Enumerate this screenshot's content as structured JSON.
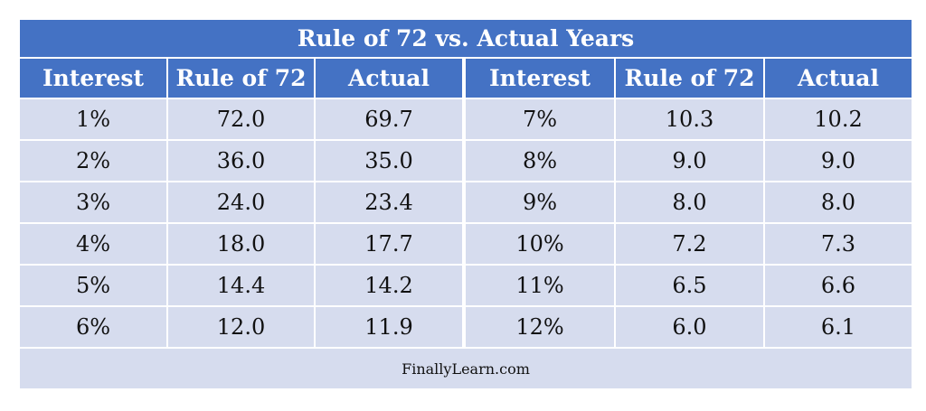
{
  "title": "Rule of 72 vs. Actual Years",
  "table": {
    "headers": [
      "Interest",
      "Rule of 72",
      "Actual",
      "Interest",
      "Rule of 72",
      "Actual"
    ],
    "rows": [
      [
        "1%",
        "72.0",
        "69.7",
        "7%",
        "10.3",
        "10.2"
      ],
      [
        "2%",
        "36.0",
        "35.0",
        "8%",
        "9.0",
        "9.0"
      ],
      [
        "3%",
        "24.0",
        "23.4",
        "9%",
        "8.0",
        "8.0"
      ],
      [
        "4%",
        "18.0",
        "17.7",
        "10%",
        "7.2",
        "7.3"
      ],
      [
        "5%",
        "14.4",
        "14.2",
        "11%",
        "6.5",
        "6.6"
      ],
      [
        "6%",
        "12.0",
        "11.9",
        "12%",
        "6.0",
        "6.1"
      ]
    ]
  },
  "footer": "FinallyLearn.com"
}
